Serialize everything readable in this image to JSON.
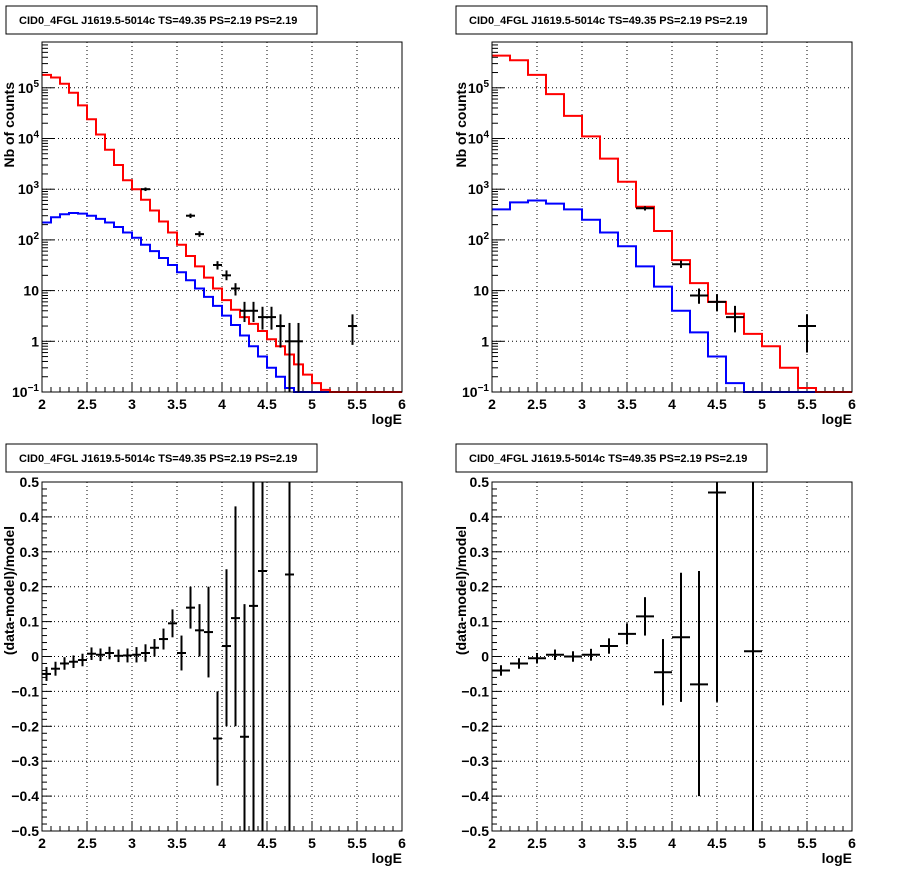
{
  "colors": {
    "data": "#000000",
    "total_model": "#ff0000",
    "source_model": "#0000ff"
  },
  "chart_data": [
    {
      "type": "line",
      "title": "CID0_4FGL J1619.5-5014c TS=49.35 PS=2.19 PS=2.19",
      "xlabel": "logE",
      "ylabel": "Nb of counts",
      "xlim": [
        2,
        6
      ],
      "ylim": [
        0.1,
        800000
      ],
      "yscale": "log",
      "grid": true,
      "x_ticks": [
        "2",
        "2.5",
        "3",
        "3.5",
        "4",
        "4.5",
        "5",
        "5.5",
        "6"
      ],
      "y_ticks": [
        {
          "value": 0.1,
          "label": "10",
          "sup": "−1"
        },
        {
          "value": 1,
          "label": "1",
          "sup": ""
        },
        {
          "value": 10,
          "label": "10",
          "sup": ""
        },
        {
          "value": 100,
          "label": "10",
          "sup": "2"
        },
        {
          "value": 1000,
          "label": "10",
          "sup": "3"
        },
        {
          "value": 10000,
          "label": "10",
          "sup": "4"
        },
        {
          "value": 100000,
          "label": "10",
          "sup": "5"
        }
      ],
      "bin_edges": [
        2.0,
        2.1,
        2.2,
        2.3,
        2.4,
        2.5,
        2.6,
        2.7,
        2.8,
        2.9,
        3.0,
        3.1,
        3.2,
        3.3,
        3.4,
        3.5,
        3.6,
        3.7,
        3.8,
        3.9,
        4.0,
        4.1,
        4.2,
        4.3,
        4.4,
        4.5,
        4.6,
        4.7,
        4.8,
        4.9,
        5.0,
        5.1,
        5.2,
        5.3,
        5.4,
        5.5,
        5.6,
        5.7,
        5.8,
        5.9,
        6.0
      ],
      "series": [
        {
          "role": "total_model",
          "values": [
            180000,
            160000,
            120000,
            80000,
            45000,
            24000,
            12000,
            6000,
            3000,
            1500,
            1000,
            620,
            380,
            230,
            140,
            80,
            48,
            30,
            18,
            11,
            6.5,
            4.2,
            3.0,
            2.2,
            1.6,
            1.1,
            0.8,
            0.55,
            0.35,
            0.22,
            0.15,
            0.11,
            0.09,
            0.08,
            0.08,
            0.08,
            0.08,
            0.08,
            0.08,
            0.08
          ]
        },
        {
          "role": "source_model",
          "values": [
            220,
            280,
            320,
            340,
            330,
            300,
            260,
            220,
            180,
            140,
            110,
            80,
            60,
            44,
            32,
            23,
            16,
            11,
            7.5,
            5.0,
            3.2,
            2.1,
            1.3,
            0.8,
            0.5,
            0.3,
            0.2,
            0.12,
            0.09,
            0.08,
            0.08,
            0.08,
            0.08,
            0.08,
            0.08,
            0.08,
            0.08,
            0.08,
            0.08,
            0.08
          ]
        }
      ],
      "points": [
        {
          "x": 3.15,
          "y": 1000,
          "xerr": 0.05,
          "ylo": 920,
          "yhi": 1080
        },
        {
          "x": 3.65,
          "y": 300,
          "xerr": 0.05,
          "ylo": 270,
          "yhi": 330
        },
        {
          "x": 3.75,
          "y": 130,
          "xerr": 0.05,
          "ylo": 115,
          "yhi": 148
        },
        {
          "x": 3.95,
          "y": 32,
          "xerr": 0.05,
          "ylo": 26,
          "yhi": 38
        },
        {
          "x": 4.05,
          "y": 20,
          "xerr": 0.05,
          "ylo": 16,
          "yhi": 25
        },
        {
          "x": 4.15,
          "y": 11,
          "xerr": 0.05,
          "ylo": 8,
          "yhi": 14
        },
        {
          "x": 4.25,
          "y": 4,
          "xerr": 0.05,
          "ylo": 2.4,
          "yhi": 6
        },
        {
          "x": 4.35,
          "y": 4,
          "xerr": 0.05,
          "ylo": 2.4,
          "yhi": 6
        },
        {
          "x": 4.45,
          "y": 3,
          "xerr": 0.05,
          "ylo": 1.7,
          "yhi": 4.8
        },
        {
          "x": 4.55,
          "y": 3,
          "xerr": 0.05,
          "ylo": 1.7,
          "yhi": 4.8
        },
        {
          "x": 4.65,
          "y": 2,
          "xerr": 0.05,
          "ylo": 0.75,
          "yhi": 3.4
        },
        {
          "x": 4.75,
          "y": 1,
          "xerr": 0.05,
          "ylo": 0.1,
          "yhi": 2.3
        },
        {
          "x": 4.85,
          "y": 1,
          "xerr": 0.05,
          "ylo": 0.1,
          "yhi": 2.3
        },
        {
          "x": 5.45,
          "y": 2,
          "xerr": 0.05,
          "ylo": 0.85,
          "yhi": 3.4
        }
      ]
    },
    {
      "type": "line",
      "title": "CID0_4FGL J1619.5-5014c TS=49.35 PS=2.19 PS=2.19",
      "xlabel": "logE",
      "ylabel": "Nb of counts",
      "xlim": [
        2,
        6
      ],
      "ylim": [
        0.1,
        800000
      ],
      "yscale": "log",
      "grid": true,
      "x_ticks": [
        "2",
        "2.5",
        "3",
        "3.5",
        "4",
        "4.5",
        "5",
        "5.5",
        "6"
      ],
      "y_ticks": [
        {
          "value": 0.1,
          "label": "10",
          "sup": "−1"
        },
        {
          "value": 1,
          "label": "1",
          "sup": ""
        },
        {
          "value": 10,
          "label": "10",
          "sup": ""
        },
        {
          "value": 100,
          "label": "10",
          "sup": "2"
        },
        {
          "value": 1000,
          "label": "10",
          "sup": "3"
        },
        {
          "value": 10000,
          "label": "10",
          "sup": "4"
        },
        {
          "value": 100000,
          "label": "10",
          "sup": "5"
        }
      ],
      "bin_edges": [
        2.0,
        2.2,
        2.4,
        2.6,
        2.8,
        3.0,
        3.2,
        3.4,
        3.6,
        3.8,
        4.0,
        4.2,
        4.4,
        4.6,
        4.8,
        5.0,
        5.2,
        5.4,
        5.6,
        5.8,
        6.0
      ],
      "series": [
        {
          "role": "total_model",
          "values": [
            430000,
            350000,
            180000,
            75000,
            28000,
            11000,
            4000,
            1400,
            450,
            150,
            40,
            14,
            6,
            3.5,
            1.4,
            0.8,
            0.3,
            0.12,
            0.08,
            0.08
          ]
        },
        {
          "role": "source_model",
          "values": [
            400,
            550,
            600,
            520,
            400,
            250,
            140,
            75,
            30,
            12,
            4,
            1.5,
            0.5,
            0.15,
            0.08,
            0.08,
            0.08,
            0.08,
            0.08,
            0.08
          ]
        }
      ],
      "points": [
        {
          "x": 3.7,
          "y": 420,
          "xerr": 0.1,
          "ylo": 380,
          "yhi": 460
        },
        {
          "x": 4.1,
          "y": 33,
          "xerr": 0.1,
          "ylo": 28,
          "yhi": 39
        },
        {
          "x": 4.3,
          "y": 8,
          "xerr": 0.1,
          "ylo": 5.5,
          "yhi": 11
        },
        {
          "x": 4.5,
          "y": 6,
          "xerr": 0.1,
          "ylo": 3.9,
          "yhi": 8.5
        },
        {
          "x": 4.7,
          "y": 3,
          "xerr": 0.1,
          "ylo": 1.5,
          "yhi": 5
        },
        {
          "x": 5.5,
          "y": 2,
          "xerr": 0.1,
          "ylo": 0.6,
          "yhi": 3.4
        }
      ]
    },
    {
      "type": "scatter",
      "title": "CID0_4FGL J1619.5-5014c TS=49.35 PS=2.19 PS=2.19",
      "xlabel": "logE",
      "ylabel": "(data-model)/model",
      "xlim": [
        2,
        6
      ],
      "ylim": [
        -0.5,
        0.5
      ],
      "yscale": "linear",
      "grid": true,
      "x_ticks": [
        "2",
        "2.5",
        "3",
        "3.5",
        "4",
        "4.5",
        "5",
        "5.5",
        "6"
      ],
      "y_ticks": [
        {
          "value": -0.5,
          "label": "−0.5",
          "sup": ""
        },
        {
          "value": -0.4,
          "label": "−0.4",
          "sup": ""
        },
        {
          "value": -0.3,
          "label": "−0.3",
          "sup": ""
        },
        {
          "value": -0.2,
          "label": "−0.2",
          "sup": ""
        },
        {
          "value": -0.1,
          "label": "−0.1",
          "sup": ""
        },
        {
          "value": 0,
          "label": "0",
          "sup": ""
        },
        {
          "value": 0.1,
          "label": "0.1",
          "sup": ""
        },
        {
          "value": 0.2,
          "label": "0.2",
          "sup": ""
        },
        {
          "value": 0.3,
          "label": "0.3",
          "sup": ""
        },
        {
          "value": 0.4,
          "label": "0.4",
          "sup": ""
        },
        {
          "value": 0.5,
          "label": "0.5",
          "sup": ""
        }
      ],
      "points": [
        {
          "x": 2.05,
          "y": -0.05,
          "xerr": 0.05,
          "ylo": -0.07,
          "yhi": -0.03
        },
        {
          "x": 2.15,
          "y": -0.035,
          "xerr": 0.05,
          "ylo": -0.055,
          "yhi": -0.015
        },
        {
          "x": 2.25,
          "y": -0.02,
          "xerr": 0.05,
          "ylo": -0.038,
          "yhi": -0.002
        },
        {
          "x": 2.35,
          "y": -0.015,
          "xerr": 0.05,
          "ylo": -0.033,
          "yhi": 0.003
        },
        {
          "x": 2.45,
          "y": -0.01,
          "xerr": 0.05,
          "ylo": -0.028,
          "yhi": 0.008
        },
        {
          "x": 2.55,
          "y": 0.008,
          "xerr": 0.05,
          "ylo": -0.01,
          "yhi": 0.026
        },
        {
          "x": 2.65,
          "y": 0.005,
          "xerr": 0.05,
          "ylo": -0.013,
          "yhi": 0.023
        },
        {
          "x": 2.75,
          "y": 0.01,
          "xerr": 0.05,
          "ylo": -0.008,
          "yhi": 0.028
        },
        {
          "x": 2.85,
          "y": 0.002,
          "xerr": 0.05,
          "ylo": -0.016,
          "yhi": 0.02
        },
        {
          "x": 2.95,
          "y": 0.003,
          "xerr": 0.05,
          "ylo": -0.017,
          "yhi": 0.023
        },
        {
          "x": 3.05,
          "y": 0.005,
          "xerr": 0.05,
          "ylo": -0.017,
          "yhi": 0.027
        },
        {
          "x": 3.15,
          "y": 0.01,
          "xerr": 0.05,
          "ylo": -0.015,
          "yhi": 0.035
        },
        {
          "x": 3.25,
          "y": 0.025,
          "xerr": 0.05,
          "ylo": 0.0,
          "yhi": 0.05
        },
        {
          "x": 3.35,
          "y": 0.05,
          "xerr": 0.05,
          "ylo": 0.02,
          "yhi": 0.08
        },
        {
          "x": 3.45,
          "y": 0.095,
          "xerr": 0.05,
          "ylo": 0.055,
          "yhi": 0.135
        },
        {
          "x": 3.55,
          "y": 0.01,
          "xerr": 0.05,
          "ylo": -0.04,
          "yhi": 0.06
        },
        {
          "x": 3.65,
          "y": 0.14,
          "xerr": 0.05,
          "ylo": 0.08,
          "yhi": 0.2
        },
        {
          "x": 3.75,
          "y": 0.075,
          "xerr": 0.05,
          "ylo": 0.0,
          "yhi": 0.15
        },
        {
          "x": 3.85,
          "y": 0.07,
          "xerr": 0.05,
          "ylo": -0.06,
          "yhi": 0.2
        },
        {
          "x": 3.95,
          "y": -0.235,
          "xerr": 0.05,
          "ylo": -0.37,
          "yhi": -0.1
        },
        {
          "x": 4.05,
          "y": 0.03,
          "xerr": 0.05,
          "ylo": -0.2,
          "yhi": 0.25
        },
        {
          "x": 4.15,
          "y": 0.11,
          "xerr": 0.05,
          "ylo": -0.2,
          "yhi": 0.43
        },
        {
          "x": 4.25,
          "y": -0.23,
          "xerr": 0.05,
          "ylo": -0.5,
          "yhi": 0.15
        },
        {
          "x": 4.35,
          "y": 0.145,
          "xerr": 0.05,
          "ylo": -0.5,
          "yhi": 0.5
        },
        {
          "x": 4.45,
          "y": 0.245,
          "xerr": 0.05,
          "ylo": -0.5,
          "yhi": 0.5
        },
        {
          "x": 4.75,
          "y": 0.235,
          "xerr": 0.05,
          "ylo": -0.5,
          "yhi": 0.5
        }
      ]
    },
    {
      "type": "scatter",
      "title": "CID0_4FGL J1619.5-5014c TS=49.35 PS=2.19 PS=2.19",
      "xlabel": "logE",
      "ylabel": "(data-model)/model",
      "xlim": [
        2,
        6
      ],
      "ylim": [
        -0.5,
        0.5
      ],
      "yscale": "linear",
      "grid": true,
      "x_ticks": [
        "2",
        "2.5",
        "3",
        "3.5",
        "4",
        "4.5",
        "5",
        "5.5",
        "6"
      ],
      "y_ticks": [
        {
          "value": -0.5,
          "label": "−0.5",
          "sup": ""
        },
        {
          "value": -0.4,
          "label": "−0.4",
          "sup": ""
        },
        {
          "value": -0.3,
          "label": "−0.3",
          "sup": ""
        },
        {
          "value": -0.2,
          "label": "−0.2",
          "sup": ""
        },
        {
          "value": -0.1,
          "label": "−0.1",
          "sup": ""
        },
        {
          "value": 0,
          "label": "0",
          "sup": ""
        },
        {
          "value": 0.1,
          "label": "0.1",
          "sup": ""
        },
        {
          "value": 0.2,
          "label": "0.2",
          "sup": ""
        },
        {
          "value": 0.3,
          "label": "0.3",
          "sup": ""
        },
        {
          "value": 0.4,
          "label": "0.4",
          "sup": ""
        },
        {
          "value": 0.5,
          "label": "0.5",
          "sup": ""
        }
      ],
      "points": [
        {
          "x": 2.1,
          "y": -0.04,
          "xerr": 0.1,
          "ylo": -0.055,
          "yhi": -0.025
        },
        {
          "x": 2.3,
          "y": -0.02,
          "xerr": 0.1,
          "ylo": -0.035,
          "yhi": -0.005
        },
        {
          "x": 2.5,
          "y": -0.005,
          "xerr": 0.1,
          "ylo": -0.02,
          "yhi": 0.01
        },
        {
          "x": 2.7,
          "y": 0.005,
          "xerr": 0.1,
          "ylo": -0.01,
          "yhi": 0.02
        },
        {
          "x": 2.9,
          "y": 0.0,
          "xerr": 0.1,
          "ylo": -0.015,
          "yhi": 0.015
        },
        {
          "x": 3.1,
          "y": 0.005,
          "xerr": 0.1,
          "ylo": -0.012,
          "yhi": 0.022
        },
        {
          "x": 3.3,
          "y": 0.03,
          "xerr": 0.1,
          "ylo": 0.008,
          "yhi": 0.052
        },
        {
          "x": 3.5,
          "y": 0.065,
          "xerr": 0.1,
          "ylo": 0.035,
          "yhi": 0.095
        },
        {
          "x": 3.7,
          "y": 0.115,
          "xerr": 0.1,
          "ylo": 0.06,
          "yhi": 0.17
        },
        {
          "x": 3.9,
          "y": -0.045,
          "xerr": 0.1,
          "ylo": -0.14,
          "yhi": 0.05
        },
        {
          "x": 4.1,
          "y": 0.055,
          "xerr": 0.1,
          "ylo": -0.13,
          "yhi": 0.24
        },
        {
          "x": 4.3,
          "y": -0.08,
          "xerr": 0.1,
          "ylo": -0.4,
          "yhi": 0.245
        },
        {
          "x": 4.5,
          "y": 0.47,
          "xerr": 0.1,
          "ylo": -0.13,
          "yhi": 0.5
        },
        {
          "x": 4.9,
          "y": 0.015,
          "xerr": 0.1,
          "ylo": -0.5,
          "yhi": 0.5
        }
      ]
    }
  ]
}
